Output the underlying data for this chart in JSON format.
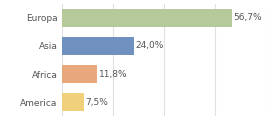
{
  "categories": [
    "Europa",
    "Asia",
    "Africa",
    "America"
  ],
  "values": [
    56.7,
    24.0,
    11.8,
    7.5
  ],
  "labels": [
    "56,7%",
    "24,0%",
    "11,8%",
    "7,5%"
  ],
  "bar_colors": [
    "#b5c99a",
    "#7090bf",
    "#e8a87c",
    "#f0d07a"
  ],
  "background_color": "#ffffff",
  "plot_bg_color": "#ffffff",
  "xlim": [
    0,
    68
  ],
  "grid_color": "#e0e0e0",
  "grid_xticks": [
    0,
    17,
    34,
    51,
    68
  ],
  "label_fontsize": 6.5,
  "category_fontsize": 6.5,
  "bar_height": 0.65
}
